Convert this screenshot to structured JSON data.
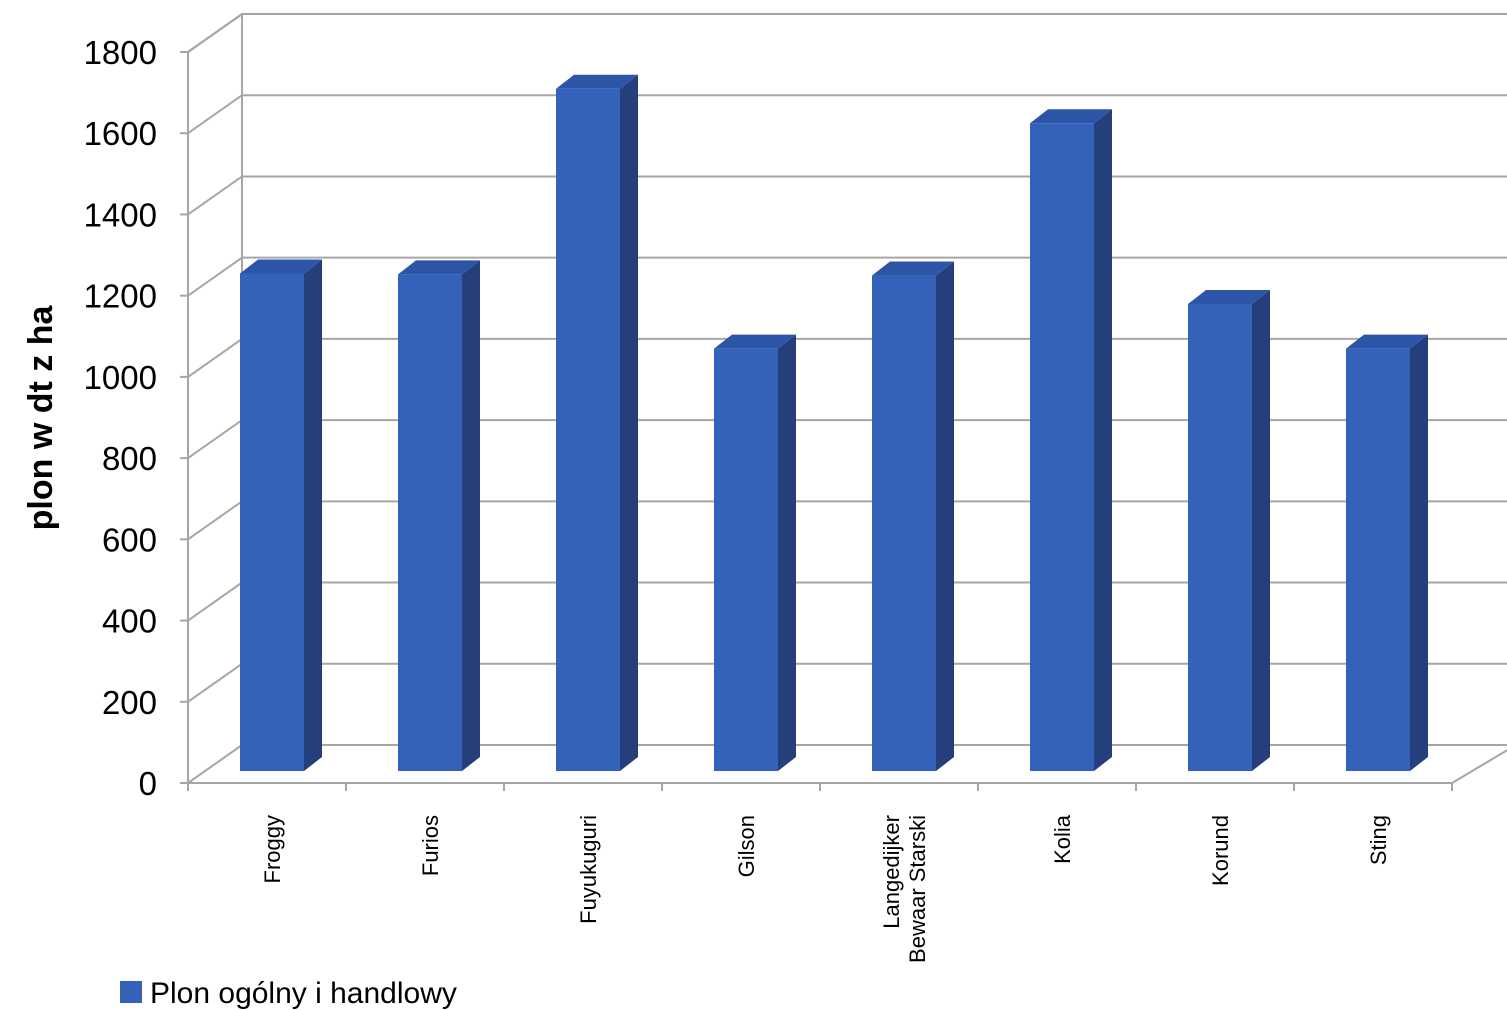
{
  "chart_data": {
    "type": "bar",
    "style": "3d-column",
    "categories": [
      "Froggy",
      "Furios",
      "Fuyukuguri",
      "Gilson",
      "Langedijker Bewaar Starski",
      "Kolia",
      "Korund",
      "Sting"
    ],
    "category_lines": [
      [
        "Froggy"
      ],
      [
        "Furios"
      ],
      [
        "Fuyukuguri"
      ],
      [
        "Gilson"
      ],
      [
        "Langedijker",
        "Bewaar Starski"
      ],
      [
        "Kolia"
      ],
      [
        "Korund"
      ],
      [
        "Sting"
      ]
    ],
    "series": [
      {
        "name": "Plon ogólny i handlowy",
        "values": [
          1225,
          1223,
          1680,
          1040,
          1220,
          1595,
          1150,
          1040
        ],
        "color": "#3461BA",
        "side_color": "#243F7B",
        "top_color": "#2C55A8"
      }
    ],
    "ylabel": "plon w dt z ha",
    "xlabel": "",
    "ylim": [
      0,
      1800
    ],
    "yticks": [
      "0",
      "200",
      "400",
      "600",
      "800",
      "1000",
      "1200",
      "1400",
      "1600",
      "1800"
    ],
    "grid": true,
    "legend": "bottom-left",
    "gridline_color": "#A6A6A6"
  }
}
